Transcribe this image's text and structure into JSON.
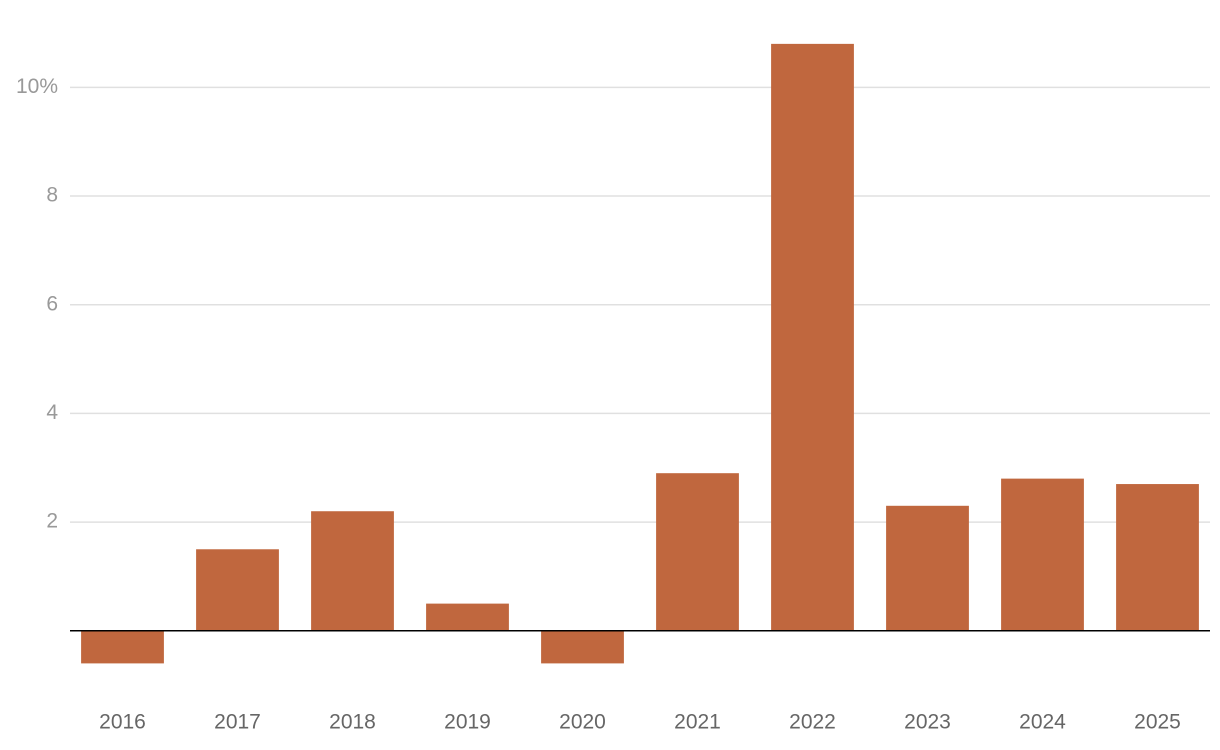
{
  "chart_data": {
    "type": "bar",
    "categories": [
      "2016",
      "2017",
      "2018",
      "2019",
      "2020",
      "2021",
      "2022",
      "2023",
      "2024",
      "2025"
    ],
    "values": [
      -0.6,
      1.5,
      2.2,
      0.5,
      -0.6,
      2.9,
      10.8,
      2.3,
      2.8,
      2.7
    ],
    "color": "#c0673e",
    "ylim": [
      -1.2,
      11
    ],
    "yticks": [
      2,
      4,
      6,
      8,
      {
        "value": 10,
        "label": "10%"
      }
    ],
    "grid": true
  }
}
